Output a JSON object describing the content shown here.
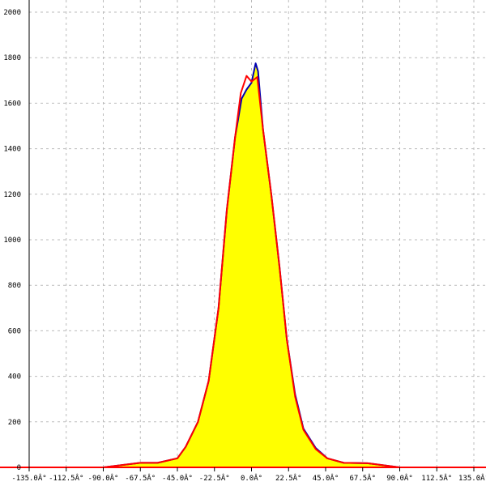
{
  "chart_data": {
    "type": "area",
    "title": "",
    "xlabel": "",
    "ylabel": "",
    "xlim": [
      -135,
      135
    ],
    "ylim": [
      0,
      2000
    ],
    "grid": true,
    "x_ticks": [
      -135,
      -112.5,
      -90,
      -67.5,
      -45,
      -22.5,
      0,
      22.5,
      45,
      67.5,
      90,
      112.5,
      135
    ],
    "x_tick_labels": [
      "-135.0Â°",
      "-112.5Â°",
      "-90.0Â°",
      "-67.5Â°",
      "-45.0Â°",
      "-22.5Â°",
      "0.0Â°",
      "22.5Â°",
      "45.0Â°",
      "67.5Â°",
      "90.0Â°",
      "112.5Â°",
      "135.0Â°"
    ],
    "y_ticks": [
      0,
      200,
      400,
      600,
      800,
      1000,
      1200,
      1400,
      1600,
      1800,
      2000
    ],
    "y_tick_labels": [
      "0",
      "200",
      "400",
      "600",
      "800",
      "1000",
      "1200",
      "1400",
      "1600",
      "1800",
      "2000"
    ],
    "colors": {
      "fill": "#ffff00",
      "series_blue": "#0000b0",
      "series_red": "#ff0000",
      "grid": "#bbbbbb",
      "axis": "#000000"
    },
    "series": [
      {
        "color": "#0000b0",
        "x": [
          -90,
          -67.5,
          -57,
          -45,
          -40,
          -32.5,
          -26,
          -20,
          -15,
          -10,
          -6,
          -3,
          0,
          2.5,
          4,
          7,
          12,
          17,
          21.5,
          26.5,
          31.5,
          39,
          46,
          56,
          70.5,
          90
        ],
        "y": [
          0,
          20,
          20,
          40,
          90,
          200,
          380,
          700,
          1130,
          1450,
          1620,
          1660,
          1690,
          1775,
          1740,
          1485,
          1200,
          880,
          560,
          320,
          170,
          85,
          40,
          20,
          18,
          0
        ]
      },
      {
        "color": "#ff0000",
        "x": [
          -135,
          -90,
          -67.5,
          -57,
          -45,
          -40,
          -32.5,
          -26,
          -20,
          -15,
          -10,
          -6.5,
          -3,
          0,
          3.5,
          7,
          12,
          17,
          21.5,
          26.5,
          31.5,
          39,
          46,
          56,
          70.5,
          90,
          135
        ],
        "y": [
          0,
          0,
          20,
          20,
          40,
          90,
          200,
          380,
          700,
          1130,
          1450,
          1645,
          1720,
          1695,
          1715,
          1485,
          1200,
          880,
          560,
          310,
          165,
          80,
          40,
          20,
          18,
          0,
          0
        ]
      }
    ]
  }
}
